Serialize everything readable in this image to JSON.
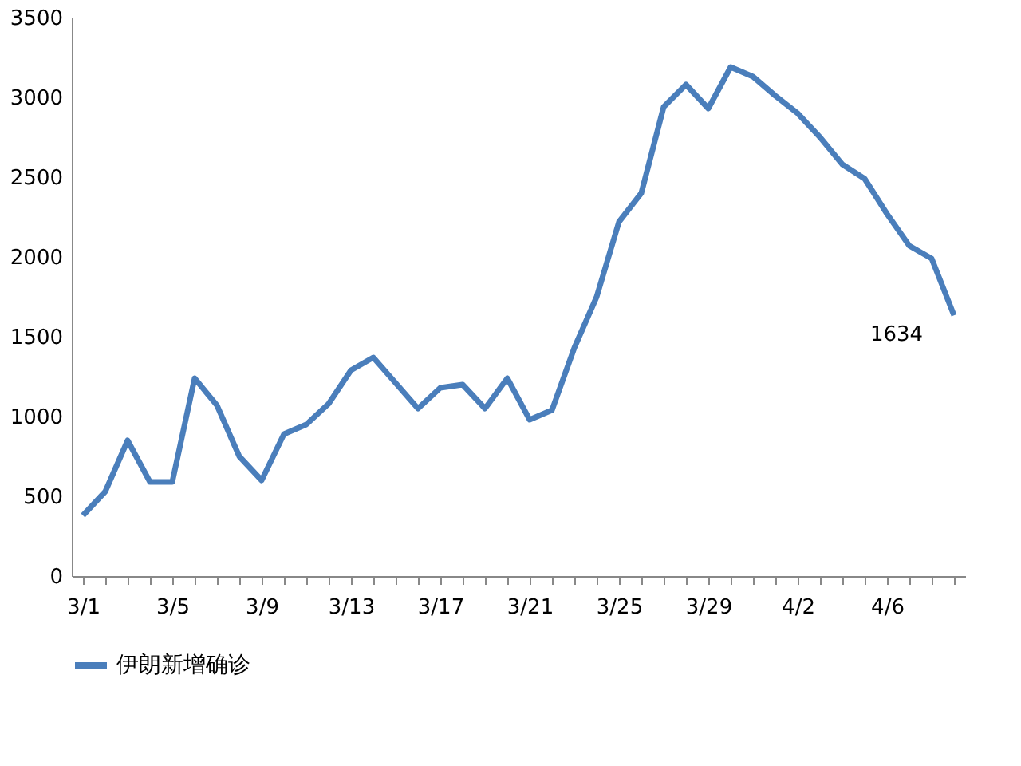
{
  "chart_data": {
    "type": "line",
    "categories": [
      "3/1",
      null,
      null,
      null,
      "3/5",
      null,
      null,
      null,
      "3/9",
      null,
      null,
      null,
      "3/13",
      null,
      null,
      null,
      "3/17",
      null,
      null,
      null,
      "3/21",
      null,
      null,
      null,
      "3/25",
      null,
      null,
      null,
      "3/29",
      null,
      null,
      null,
      "4/2",
      null,
      null,
      null,
      "4/6",
      null,
      null,
      null
    ],
    "series": [
      {
        "name": "伊朗新增确诊",
        "color": "#4a7ebb",
        "values": [
          380,
          530,
          850,
          590,
          590,
          1240,
          1070,
          750,
          600,
          890,
          950,
          1080,
          1290,
          1370,
          1210,
          1050,
          1180,
          1200,
          1050,
          1240,
          980,
          1040,
          1430,
          1750,
          2220,
          2400,
          2940,
          3080,
          2930,
          3190,
          3130,
          3010,
          2900,
          2750,
          2580,
          2490,
          2270,
          2070,
          1990,
          1634
        ]
      }
    ],
    "ylim": [
      0,
      3500
    ],
    "yticks": [
      0,
      500,
      1000,
      1500,
      2000,
      2500,
      3000,
      3500
    ],
    "value_labels": [
      null,
      null,
      null,
      null,
      null,
      null,
      null,
      null,
      null,
      null,
      null,
      null,
      null,
      null,
      null,
      null,
      null,
      null,
      null,
      null,
      null,
      null,
      null,
      null,
      null,
      null,
      null,
      null,
      null,
      null,
      null,
      null,
      null,
      null,
      null,
      null,
      null,
      null,
      null,
      "1634"
    ],
    "legend": "bottom",
    "grid": false,
    "marker": "none",
    "line_style": "solid"
  }
}
